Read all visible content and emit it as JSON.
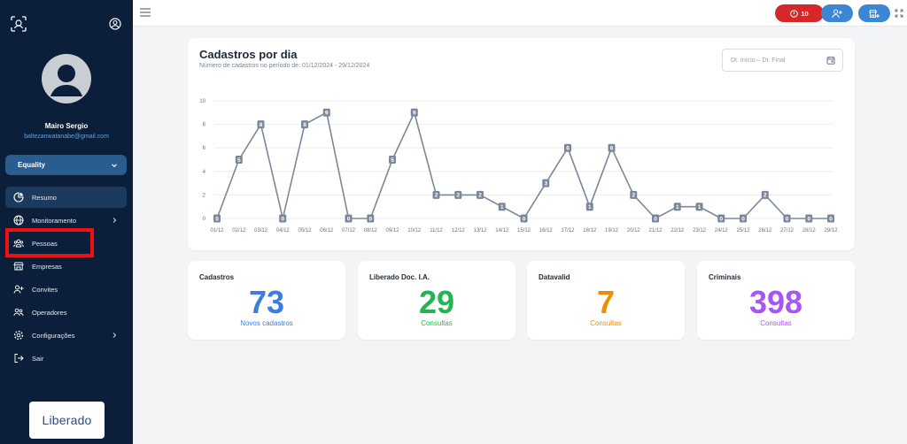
{
  "sidebar": {
    "user": {
      "name": "Mairo Sergio",
      "email": "baltezanwatanabe@gmail.com"
    },
    "company": "Equality",
    "menu": [
      {
        "label": "Resumo",
        "icon": "pie-chart-icon",
        "active": true,
        "has_submenu": false
      },
      {
        "label": "Monitoramento",
        "icon": "globe-icon",
        "active": false,
        "has_submenu": true
      },
      {
        "label": "Pessoas",
        "icon": "people-icon",
        "active": false,
        "has_submenu": false
      },
      {
        "label": "Empresas",
        "icon": "store-icon",
        "active": false,
        "has_submenu": false
      },
      {
        "label": "Convites",
        "icon": "person-add-icon",
        "active": false,
        "has_submenu": false
      },
      {
        "label": "Operadores",
        "icon": "users-icon",
        "active": false,
        "has_submenu": false
      },
      {
        "label": "Configurações",
        "icon": "gear-icon",
        "active": false,
        "has_submenu": true
      },
      {
        "label": "Sair",
        "icon": "logout-icon",
        "active": false,
        "has_submenu": false
      }
    ],
    "brand": "Liberado"
  },
  "topbar": {
    "alerts_count": "10"
  },
  "chart_card": {
    "title": "Cadastros por dia",
    "subtitle": "Número de cadastros no período de: 01/12/2024 - 29/12/2024",
    "date_placeholder": "Dt. Início – Dt. Final"
  },
  "chart_data": {
    "type": "line",
    "categories": [
      "01/12",
      "02/12",
      "03/12",
      "04/12",
      "05/12",
      "06/12",
      "07/12",
      "08/12",
      "09/12",
      "10/12",
      "11/12",
      "12/12",
      "13/12",
      "14/12",
      "15/12",
      "16/12",
      "17/12",
      "18/12",
      "19/12",
      "20/12",
      "21/12",
      "22/12",
      "23/12",
      "24/12",
      "25/12",
      "26/12",
      "27/12",
      "28/12",
      "29/12"
    ],
    "values": [
      0,
      5,
      8,
      0,
      8,
      9,
      0,
      0,
      5,
      9,
      2,
      2,
      2,
      1,
      0,
      3,
      6,
      1,
      6,
      2,
      0,
      1,
      1,
      0,
      0,
      2,
      0,
      0,
      0
    ],
    "ylim": [
      0,
      10
    ],
    "yticks": [
      0,
      2,
      4,
      6,
      8,
      10
    ],
    "grid": true,
    "line_color": "#7b8799"
  },
  "stats": [
    {
      "label": "Cadastros",
      "value": "73",
      "sub": "Novos cadastros",
      "color": "#3b7ddd"
    },
    {
      "label": "Liberado Doc. I.A.",
      "value": "29",
      "sub": "Consultas",
      "color": "#22b552"
    },
    {
      "label": "Datavalid",
      "value": "7",
      "sub": "Consultas",
      "color": "#f08c00"
    },
    {
      "label": "Criminais",
      "value": "398",
      "sub": "Consultas",
      "color": "#a855f7"
    }
  ]
}
